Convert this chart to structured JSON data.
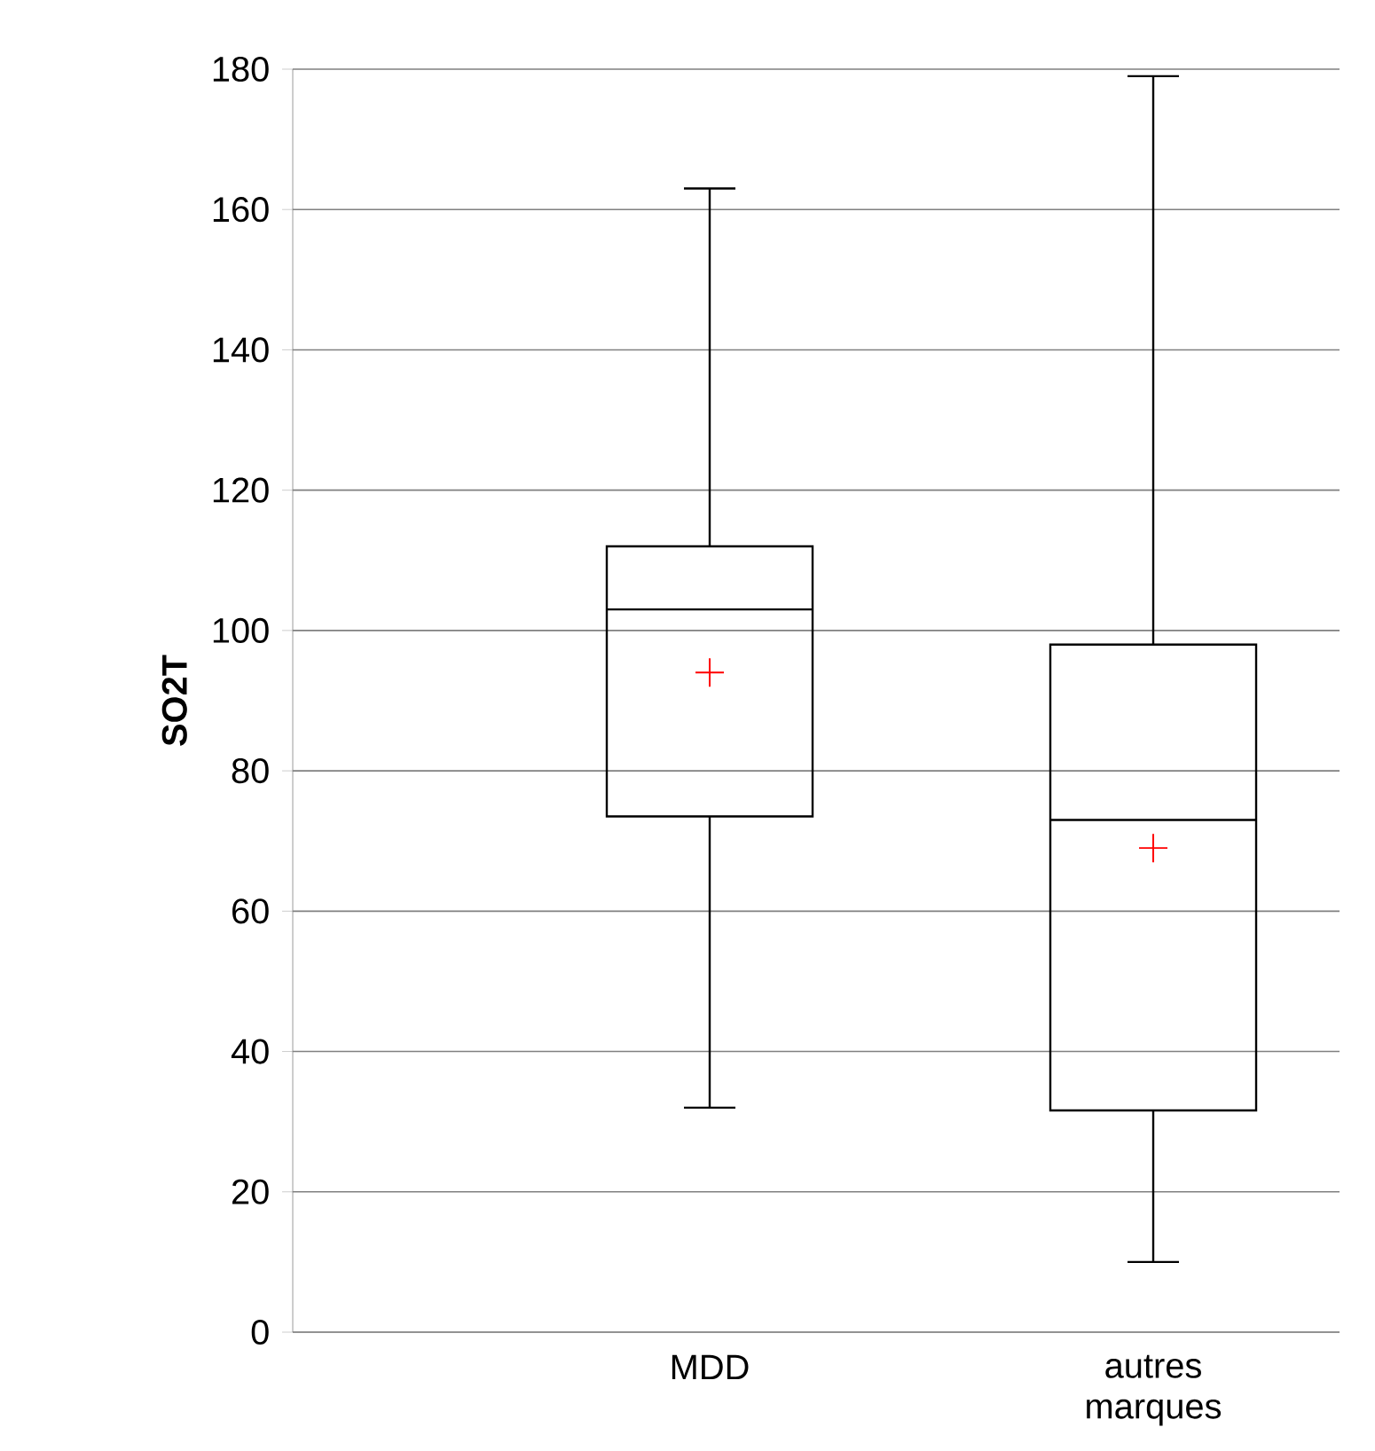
{
  "chart_data": {
    "type": "box",
    "ylabel": "SO2T",
    "categories": [
      "MDD",
      "autres marques"
    ],
    "boxes": [
      {
        "low": 32,
        "q1": 73.5,
        "median": 103,
        "q3": 112,
        "high": 163,
        "mean": 94
      },
      {
        "low": 10,
        "q1": 31.6,
        "median": 73,
        "q3": 98,
        "high": 179,
        "mean": 69
      }
    ],
    "ylim": [
      0,
      180
    ],
    "yticks": [
      0,
      20,
      40,
      60,
      80,
      100,
      120,
      140,
      160,
      180
    ],
    "grid": "y",
    "color": "#000000"
  }
}
